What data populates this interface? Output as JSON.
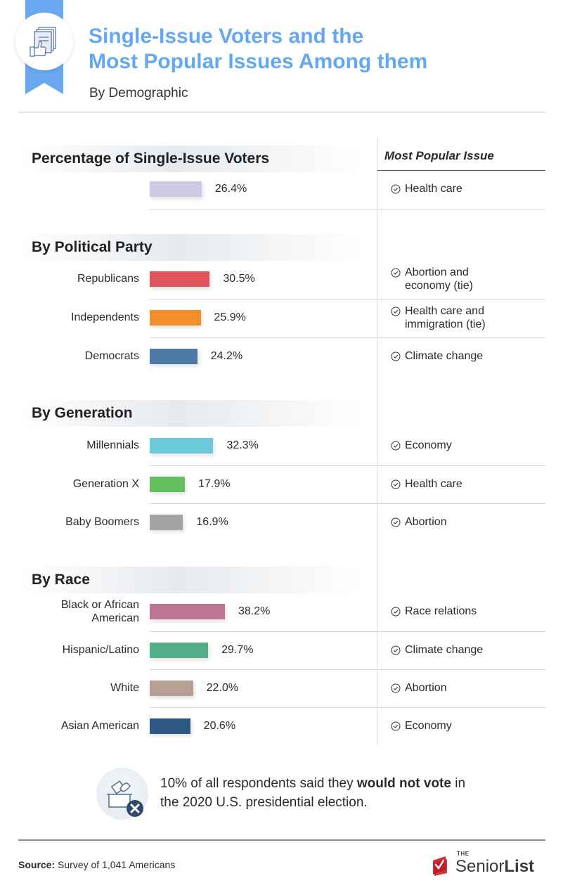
{
  "header": {
    "title_line1": "Single-Issue Voters and the",
    "title_line2": "Most Popular Issues Among them",
    "subtitle": "By Demographic",
    "icon": "document-thumbs-up-icon",
    "accent_color": "#64a8f2"
  },
  "issue_column_header": "Most Popular Issue",
  "chart_data": {
    "type": "bar",
    "orientation": "horizontal",
    "title": "Single-Issue Voters and the Most Popular Issues Among them",
    "subtitle": "By Demographic",
    "unit": "%",
    "xlabel": "Percentage of Single-Issue Voters",
    "ylabel": "",
    "grid": false,
    "legend": "none",
    "groups": [
      {
        "title": "Percentage of Single-Issue Voters",
        "rows": [
          {
            "label": "",
            "value": 26.4,
            "display": "26.4%",
            "color": "#cfcae3",
            "issue": "Health care"
          }
        ]
      },
      {
        "title": "By Political Party",
        "rows": [
          {
            "label": "Republicans",
            "value": 30.5,
            "display": "30.5%",
            "color": "#e0555b",
            "issue_line1": "Abortion and",
            "issue_line2": "economy (tie)"
          },
          {
            "label": "Independents",
            "value": 25.9,
            "display": "25.9%",
            "color": "#f28f2c",
            "issue_line1": "Health care and",
            "issue_line2": "immigration (tie)"
          },
          {
            "label": "Democrats",
            "value": 24.2,
            "display": "24.2%",
            "color": "#4e78a6",
            "issue": "Climate change"
          }
        ]
      },
      {
        "title": "By Generation",
        "rows": [
          {
            "label": "Millennials",
            "value": 32.3,
            "display": "32.3%",
            "color": "#6bcbdb",
            "issue": "Economy"
          },
          {
            "label": "Generation X",
            "value": 17.9,
            "display": "17.9%",
            "color": "#66bf5e",
            "issue": "Health care"
          },
          {
            "label": "Baby Boomers",
            "value": 16.9,
            "display": "16.9%",
            "color": "#a3a3a3",
            "issue": "Abortion"
          }
        ]
      },
      {
        "title": "By Race",
        "rows": [
          {
            "label_line1": "Black or African",
            "label_line2": "American",
            "value": 38.2,
            "display": "38.2%",
            "color": "#bc7592",
            "issue": "Race relations"
          },
          {
            "label": "Hispanic/Latino",
            "value": 29.7,
            "display": "29.7%",
            "color": "#55af8a",
            "issue": "Climate change"
          },
          {
            "label": "White",
            "value": 22.0,
            "display": "22.0%",
            "color": "#b89f94",
            "issue": "Abortion"
          },
          {
            "label": "Asian American",
            "value": 20.6,
            "display": "20.6%",
            "color": "#2e5883",
            "issue": "Economy"
          }
        ]
      }
    ]
  },
  "note": {
    "icon": "ballot-box-x-icon",
    "text_before": "10% of all respondents said they ",
    "text_bold": "would not vote",
    "text_after": " in the 2020 U.S. presidential election."
  },
  "footer": {
    "source_label": "Source:",
    "source_text": " Survey of 1,041 Americans",
    "logo_the": "THE",
    "logo_senior": "Senior",
    "logo_list": "List",
    "logo_color": "#d8262e"
  }
}
